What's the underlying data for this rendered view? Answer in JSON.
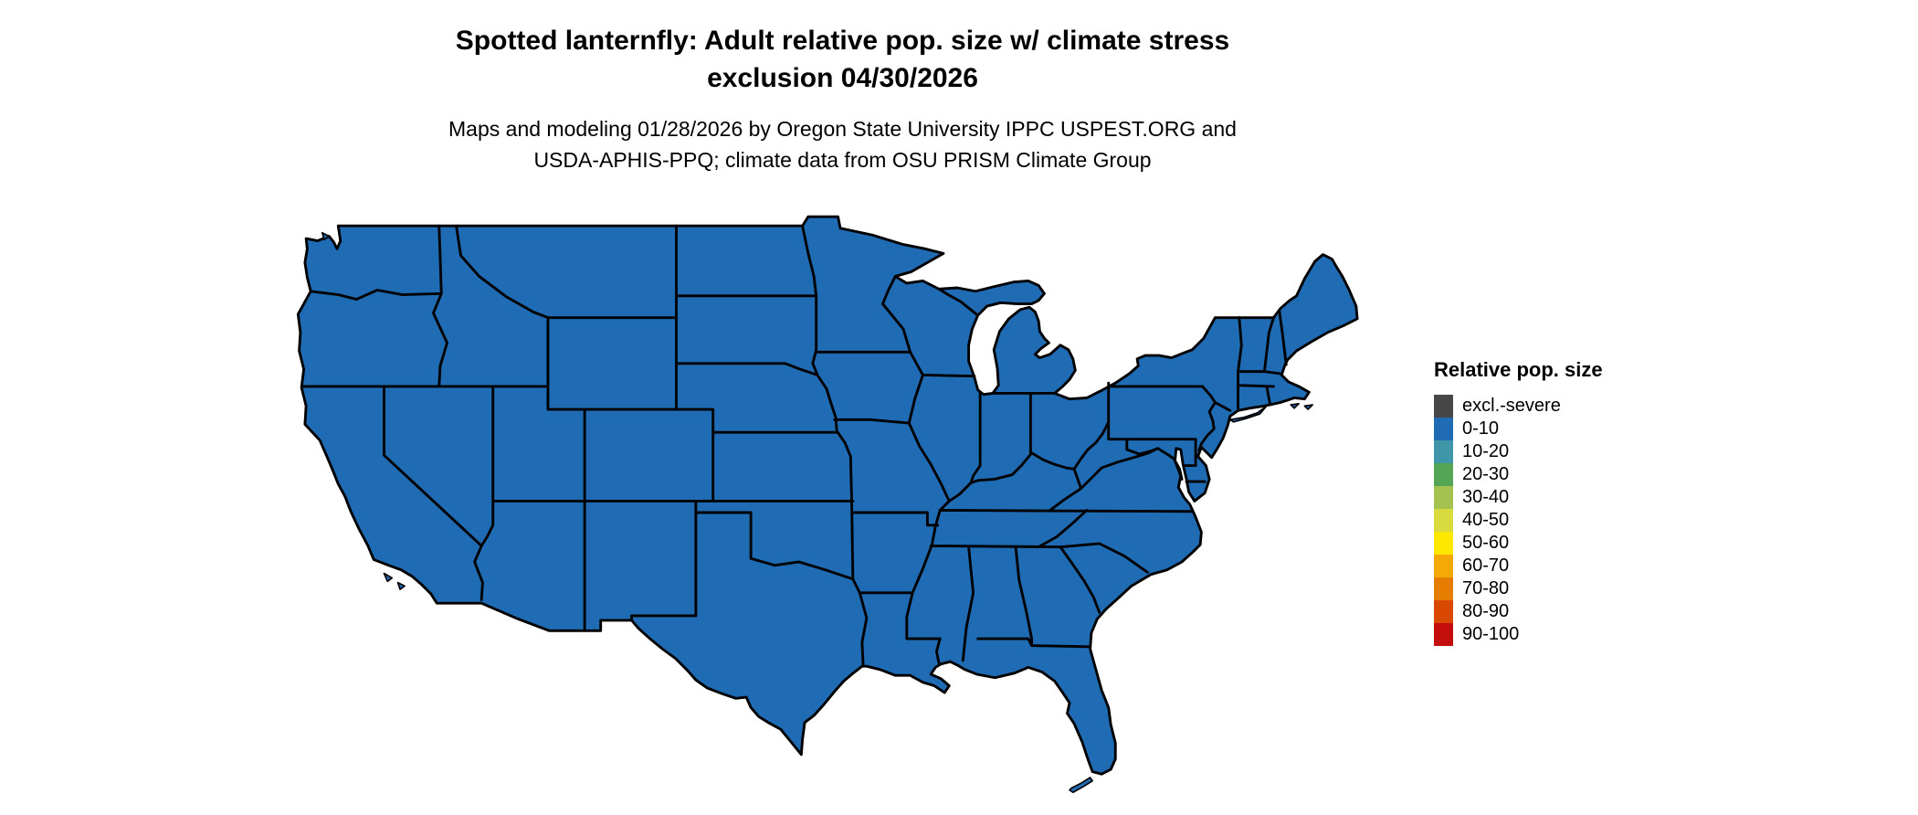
{
  "page": {
    "background_color": "#ffffff"
  },
  "title": {
    "line1": "Spotted lanternfly: Adult relative pop. size w/ climate stress",
    "line2": "exclusion 04/30/2026"
  },
  "subtitle": {
    "line1": "Maps and modeling 01/28/2026 by Oregon State University IPPC USPEST.ORG and",
    "line2": "USDA-APHIS-PPQ; climate data from OSU PRISM Climate Group"
  },
  "map": {
    "name": "contiguous-united-states-choropleth",
    "fill_color": "#1f6cb5",
    "border_color": "#000000",
    "water_color": "#ffffff",
    "uniform_category": "0-10"
  },
  "legend": {
    "title": "Relative pop. size",
    "items": [
      {
        "label": "excl.-severe",
        "color": "#474747"
      },
      {
        "label": "0-10",
        "color": "#1f6cb5"
      },
      {
        "label": "10-20",
        "color": "#3f96a8"
      },
      {
        "label": "20-30",
        "color": "#55a654"
      },
      {
        "label": "30-40",
        "color": "#a3c34e"
      },
      {
        "label": "40-50",
        "color": "#d9da3e"
      },
      {
        "label": "50-60",
        "color": "#ffe800"
      },
      {
        "label": "60-70",
        "color": "#f4a908"
      },
      {
        "label": "70-80",
        "color": "#e67d01"
      },
      {
        "label": "80-90",
        "color": "#d94801"
      },
      {
        "label": "90-100",
        "color": "#c40d0d"
      }
    ]
  },
  "chart_data": {
    "type": "heatmap",
    "subtype": "choropleth-map",
    "title": "Spotted lanternfly: Adult relative pop. size w/ climate stress exclusion 04/30/2026",
    "legend_title": "Relative pop. size",
    "bins": [
      "excl.-severe",
      "0-10",
      "10-20",
      "20-30",
      "30-40",
      "40-50",
      "50-60",
      "60-70",
      "70-80",
      "80-90",
      "90-100"
    ],
    "region": "Contiguous United States",
    "observation": "Entire mapped area is rendered in the 0-10 relative population size class",
    "legend_position": "right"
  }
}
